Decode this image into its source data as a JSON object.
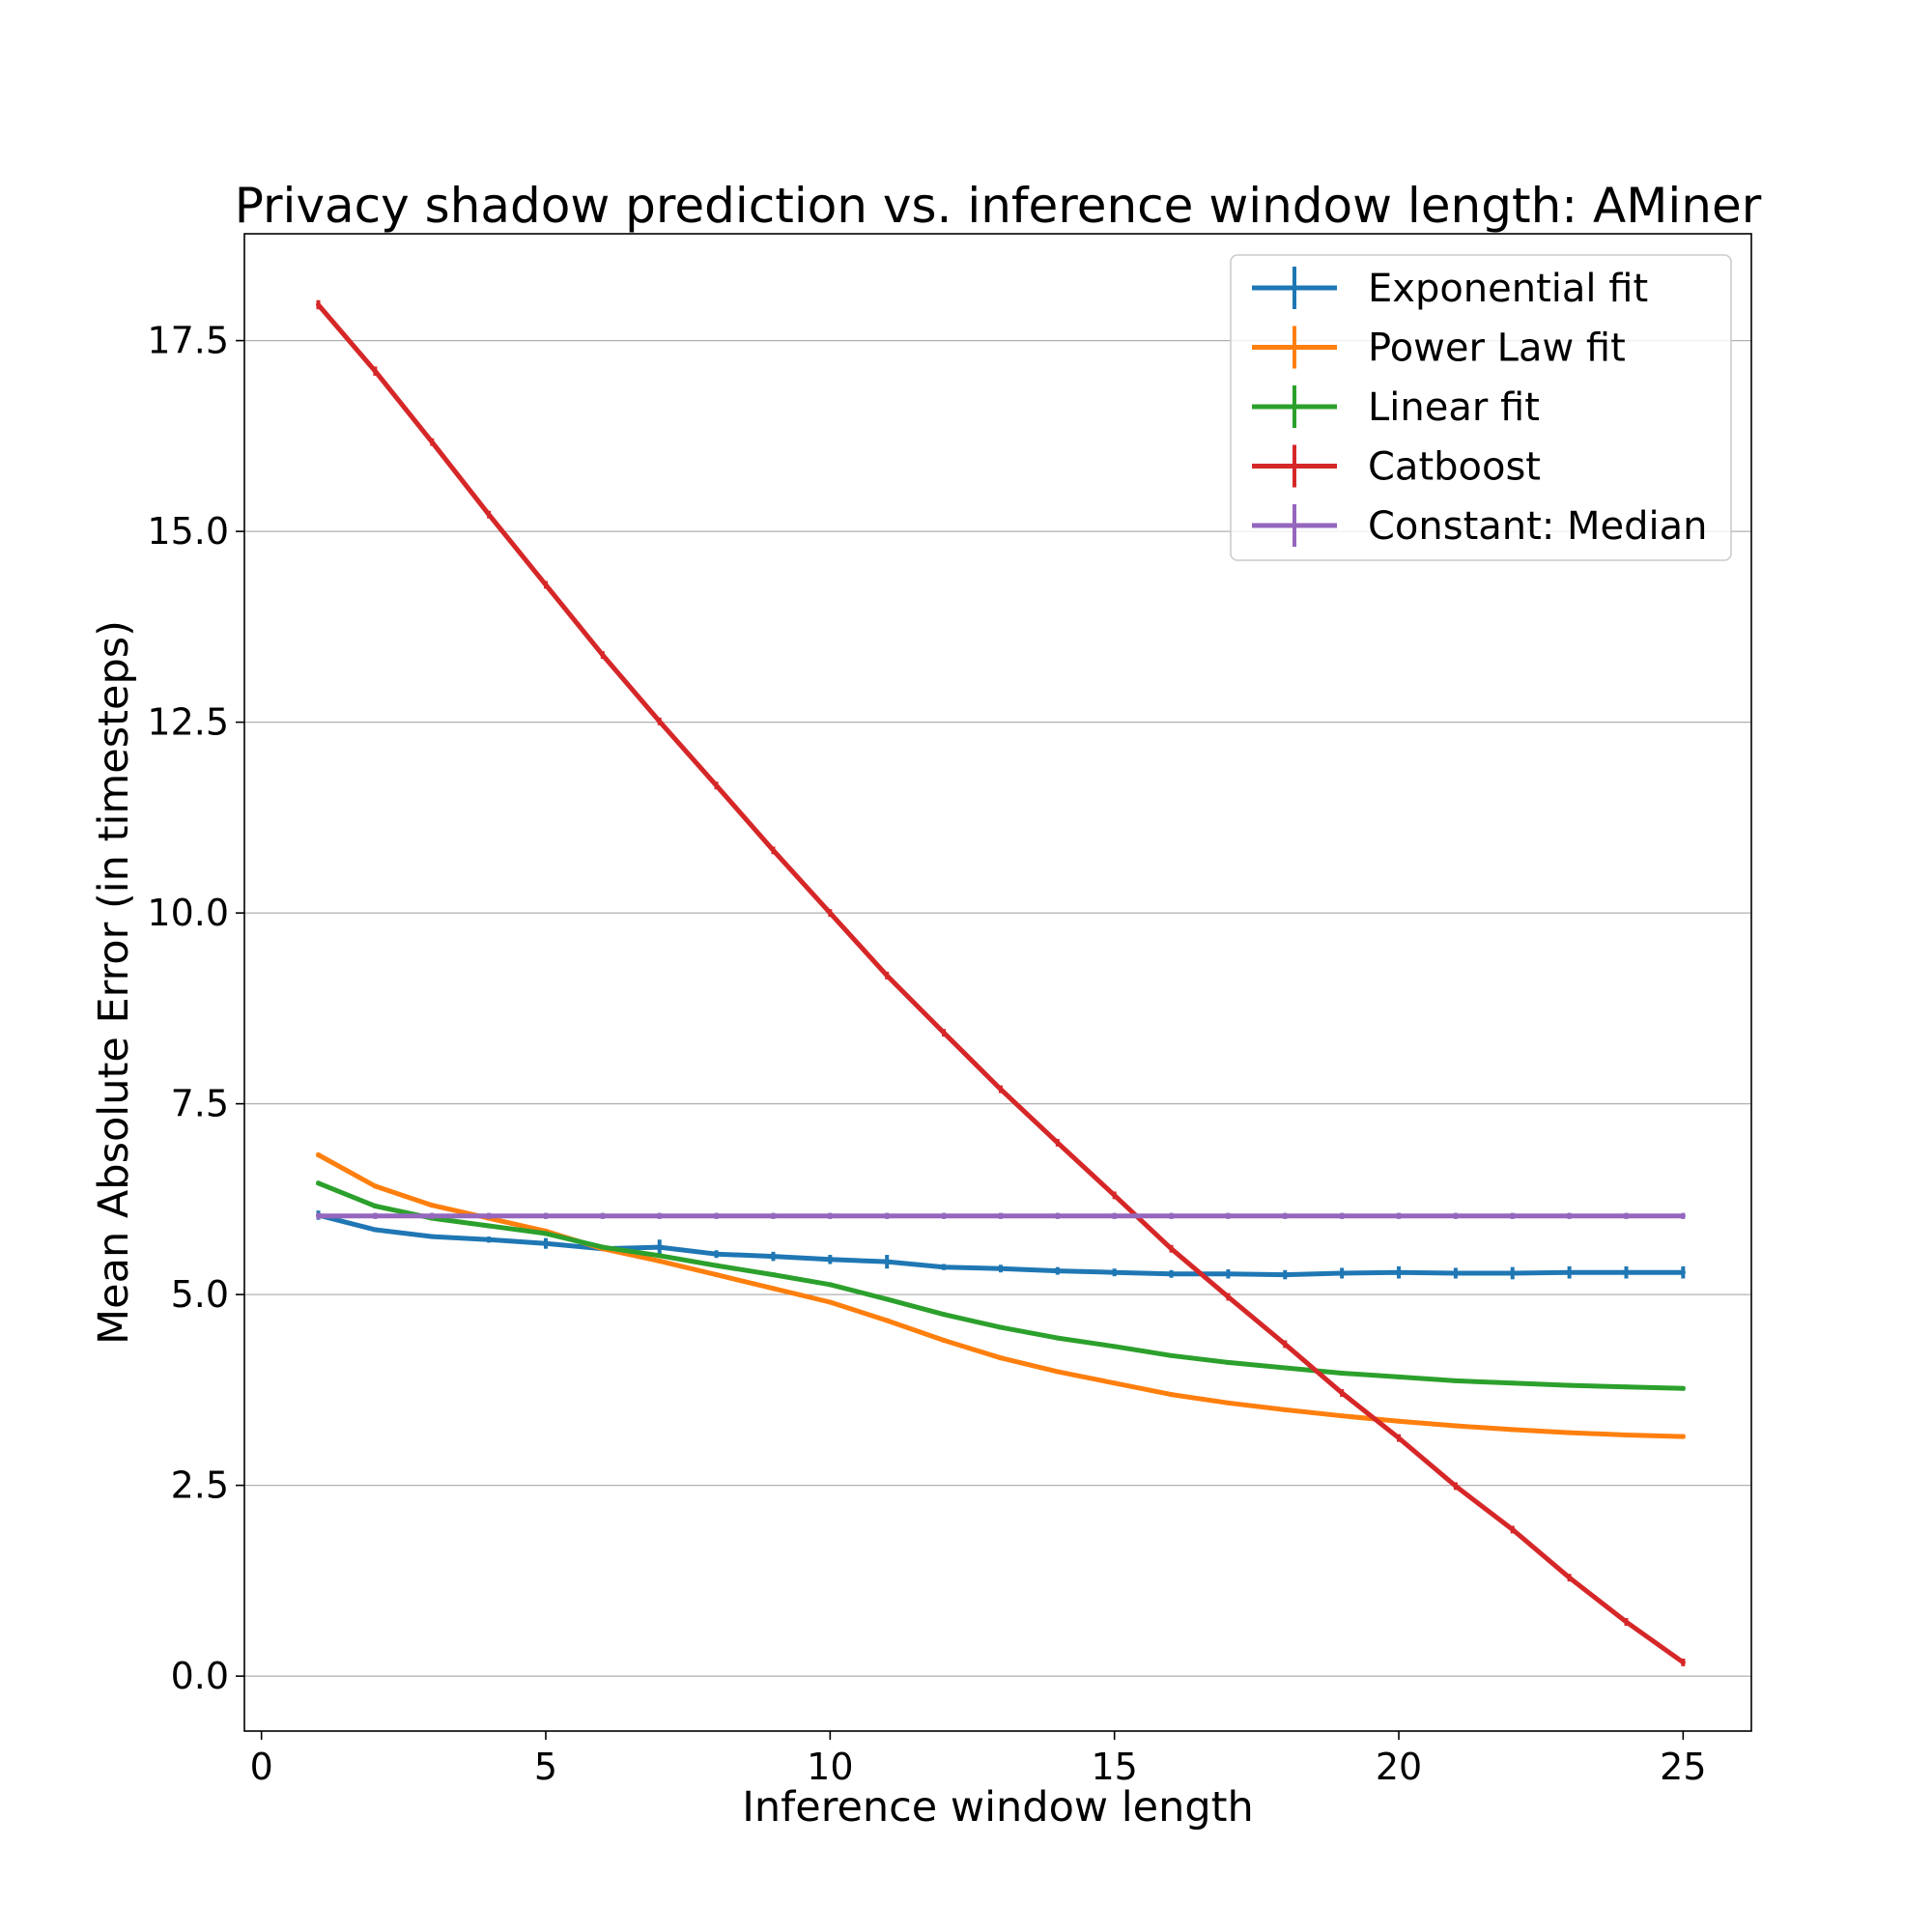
{
  "chart_data": {
    "type": "line",
    "title": "Privacy shadow prediction vs. inference window length: AMiner",
    "xlabel": "Inference window length",
    "ylabel": "Mean Absolute Error (in timesteps)",
    "xlim": [
      -0.3,
      26.2
    ],
    "ylim": [
      -0.72,
      18.9
    ],
    "xticks": [
      0,
      5,
      10,
      15,
      20,
      25
    ],
    "xtick_labels": [
      "0",
      "5",
      "10",
      "15",
      "20",
      "25"
    ],
    "yticks": [
      0.0,
      2.5,
      5.0,
      7.5,
      10.0,
      12.5,
      15.0,
      17.5
    ],
    "ytick_labels": [
      "0.0",
      "2.5",
      "5.0",
      "7.5",
      "10.0",
      "12.5",
      "15.0",
      "17.5"
    ],
    "grid": "y-major",
    "legend_position": "top-right",
    "x": [
      1,
      2,
      3,
      4,
      5,
      6,
      7,
      8,
      9,
      10,
      11,
      12,
      13,
      14,
      15,
      16,
      17,
      18,
      19,
      20,
      21,
      22,
      23,
      24,
      25
    ],
    "series": [
      {
        "name": "Exponential fit",
        "color": "#1f77b4",
        "values": [
          6.04,
          5.85,
          5.76,
          5.72,
          5.67,
          5.6,
          5.62,
          5.53,
          5.5,
          5.46,
          5.43,
          5.36,
          5.34,
          5.31,
          5.29,
          5.27,
          5.27,
          5.26,
          5.28,
          5.29,
          5.28,
          5.28,
          5.29,
          5.29,
          5.29
        ],
        "errors": [
          0.06,
          0.03,
          0.03,
          0.04,
          0.07,
          0.03,
          0.1,
          0.05,
          0.06,
          0.06,
          0.09,
          0.04,
          0.05,
          0.05,
          0.05,
          0.05,
          0.06,
          0.06,
          0.07,
          0.08,
          0.07,
          0.08,
          0.08,
          0.08,
          0.08
        ]
      },
      {
        "name": "Power Law fit",
        "color": "#ff7f0e",
        "values": [
          6.83,
          6.42,
          6.17,
          6.0,
          5.83,
          5.6,
          5.44,
          5.26,
          5.08,
          4.9,
          4.66,
          4.4,
          4.17,
          3.99,
          3.84,
          3.69,
          3.58,
          3.49,
          3.41,
          3.34,
          3.28,
          3.23,
          3.19,
          3.16,
          3.14
        ],
        "errors": [
          0.03,
          0.02,
          0.02,
          0.02,
          0.02,
          0.02,
          0.02,
          0.02,
          0.02,
          0.02,
          0.02,
          0.02,
          0.02,
          0.02,
          0.02,
          0.02,
          0.02,
          0.02,
          0.02,
          0.02,
          0.02,
          0.02,
          0.02,
          0.02,
          0.02
        ]
      },
      {
        "name": "Linear fit",
        "color": "#2ca02c",
        "values": [
          6.46,
          6.16,
          6.0,
          5.9,
          5.8,
          5.62,
          5.51,
          5.38,
          5.26,
          5.13,
          4.94,
          4.74,
          4.57,
          4.43,
          4.32,
          4.2,
          4.11,
          4.04,
          3.97,
          3.92,
          3.87,
          3.84,
          3.81,
          3.79,
          3.77
        ],
        "errors": [
          0.02,
          0.02,
          0.02,
          0.02,
          0.02,
          0.02,
          0.02,
          0.02,
          0.02,
          0.02,
          0.02,
          0.02,
          0.02,
          0.02,
          0.02,
          0.02,
          0.02,
          0.02,
          0.02,
          0.02,
          0.02,
          0.02,
          0.02,
          0.02,
          0.02
        ]
      },
      {
        "name": "Catboost",
        "color": "#d62728",
        "values": [
          17.97,
          17.1,
          16.17,
          15.22,
          14.3,
          13.38,
          12.51,
          11.67,
          10.82,
          10.0,
          9.18,
          8.43,
          7.69,
          6.99,
          6.3,
          5.6,
          4.97,
          4.35,
          3.71,
          3.12,
          2.49,
          1.92,
          1.29,
          0.71,
          0.18
        ],
        "errors": [
          0.06,
          0.06,
          0.05,
          0.05,
          0.05,
          0.05,
          0.05,
          0.05,
          0.05,
          0.05,
          0.05,
          0.05,
          0.05,
          0.05,
          0.05,
          0.05,
          0.05,
          0.05,
          0.05,
          0.05,
          0.05,
          0.05,
          0.05,
          0.05,
          0.05
        ]
      },
      {
        "name": "Constant: Median",
        "color": "#9467bd",
        "values": [
          6.03,
          6.03,
          6.03,
          6.03,
          6.03,
          6.03,
          6.03,
          6.03,
          6.03,
          6.03,
          6.03,
          6.03,
          6.03,
          6.03,
          6.03,
          6.03,
          6.03,
          6.03,
          6.03,
          6.03,
          6.03,
          6.03,
          6.03,
          6.03,
          6.03
        ],
        "errors": [
          0.04,
          0.04,
          0.04,
          0.04,
          0.04,
          0.04,
          0.04,
          0.04,
          0.04,
          0.04,
          0.04,
          0.04,
          0.04,
          0.04,
          0.04,
          0.04,
          0.04,
          0.04,
          0.04,
          0.04,
          0.04,
          0.04,
          0.04,
          0.04,
          0.04
        ]
      }
    ]
  }
}
